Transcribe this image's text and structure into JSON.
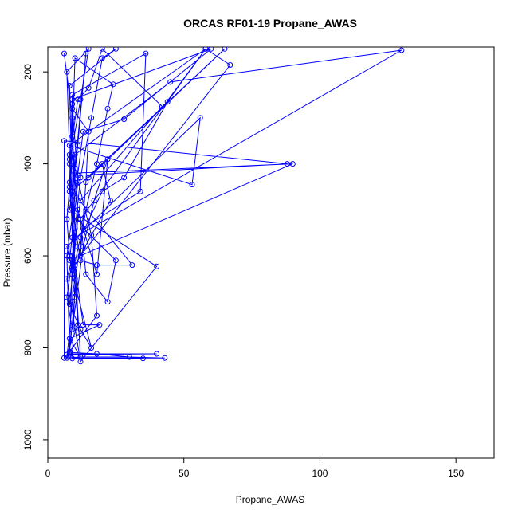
{
  "chart_data": {
    "type": "scatter",
    "title": "ORCAS RF01-19 Propane_AWAS",
    "xlabel": "Propane_AWAS",
    "ylabel": "Pressure (mbar)",
    "xlim": [
      0,
      164
    ],
    "ylim": [
      1040,
      146
    ],
    "y_reversed": true,
    "x_ticks": [
      0,
      50,
      100,
      150
    ],
    "y_ticks": [
      200,
      400,
      600,
      800,
      1000
    ],
    "grid": false,
    "series": [
      {
        "color": "#0000ff",
        "mode": "lines+markers",
        "points": [
          [
            6,
            160
          ],
          [
            9,
            300
          ],
          [
            8,
            450
          ],
          [
            10,
            620
          ],
          [
            12,
            820
          ],
          [
            30,
            820
          ],
          [
            43,
            822
          ],
          [
            7,
            822
          ],
          [
            9,
            700
          ],
          [
            10,
            540
          ],
          [
            8,
            400
          ],
          [
            12,
            260
          ],
          [
            15,
            150
          ],
          [
            7,
            200
          ],
          [
            8,
            380
          ],
          [
            9,
            560
          ],
          [
            11,
            750
          ],
          [
            7,
            815
          ],
          [
            40,
            813
          ],
          [
            8,
            813
          ],
          [
            9,
            600
          ],
          [
            12,
            430
          ],
          [
            16,
            300
          ],
          [
            20,
            170
          ],
          [
            25,
            150
          ],
          [
            8,
            230
          ],
          [
            9,
            480
          ],
          [
            10,
            680
          ],
          [
            8,
            810
          ],
          [
            18,
            813
          ],
          [
            35,
            823
          ],
          [
            9,
            823
          ],
          [
            10,
            650
          ],
          [
            14,
            500
          ],
          [
            18,
            400
          ],
          [
            22,
            280
          ],
          [
            24,
            227
          ],
          [
            10,
            170
          ],
          [
            9,
            340
          ],
          [
            11,
            520
          ],
          [
            8,
            705
          ],
          [
            12,
            760
          ],
          [
            16,
            800
          ],
          [
            9,
            640
          ],
          [
            12,
            560
          ],
          [
            20,
            460
          ],
          [
            28,
            430
          ],
          [
            44,
            265
          ],
          [
            58,
            150
          ],
          [
            12,
            520
          ],
          [
            14,
            640
          ],
          [
            22,
            700
          ],
          [
            25,
            610
          ],
          [
            13,
            540
          ],
          [
            34,
            460
          ],
          [
            36,
            160
          ],
          [
            9,
            250
          ],
          [
            8,
            440
          ],
          [
            10,
            580
          ],
          [
            7,
            650
          ],
          [
            12,
            830
          ],
          [
            40,
            623
          ],
          [
            8,
            500
          ],
          [
            11,
            360
          ],
          [
            14,
            160
          ],
          [
            10,
            410
          ],
          [
            16,
            555
          ],
          [
            18,
            730
          ],
          [
            8,
            808
          ],
          [
            7,
            600
          ],
          [
            10,
            470
          ],
          [
            13,
            330
          ],
          [
            28,
            303
          ],
          [
            60,
            150
          ],
          [
            9,
            260
          ],
          [
            8,
            460
          ],
          [
            12,
            610
          ],
          [
            18,
            620
          ],
          [
            31,
            620
          ],
          [
            9,
            460
          ],
          [
            65,
            150
          ],
          [
            15,
            430
          ],
          [
            20,
            400
          ],
          [
            23,
            480
          ],
          [
            10,
            620
          ],
          [
            13,
            750
          ],
          [
            19,
            750
          ],
          [
            8,
            780
          ],
          [
            12,
            820
          ],
          [
            6,
            822
          ],
          [
            6,
            350
          ],
          [
            88,
            400
          ],
          [
            11,
            425
          ],
          [
            9,
            280
          ],
          [
            15,
            330
          ],
          [
            14,
            440
          ],
          [
            12,
            600
          ],
          [
            67,
            185
          ],
          [
            58,
            150
          ],
          [
            8,
            360
          ],
          [
            53,
            445
          ],
          [
            56,
            300
          ],
          [
            7,
            580
          ],
          [
            9,
            630
          ],
          [
            10,
            380
          ],
          [
            45,
            222
          ],
          [
            130,
            153
          ],
          [
            10,
            560
          ],
          [
            9,
            270
          ],
          [
            11,
            440
          ],
          [
            8,
            610
          ],
          [
            90,
            400
          ],
          [
            10,
            420
          ],
          [
            8,
            390
          ],
          [
            11,
            260
          ],
          [
            15,
            235
          ],
          [
            20,
            150
          ],
          [
            42,
            275
          ],
          [
            12,
            480
          ],
          [
            7,
            690
          ],
          [
            9,
            760
          ],
          [
            13,
            580
          ],
          [
            17,
            480
          ],
          [
            22,
            390
          ],
          [
            18,
            640
          ],
          [
            11,
            500
          ],
          [
            9,
            380
          ],
          [
            7,
            520
          ],
          [
            8,
            600
          ],
          [
            10,
            690
          ]
        ]
      }
    ]
  }
}
